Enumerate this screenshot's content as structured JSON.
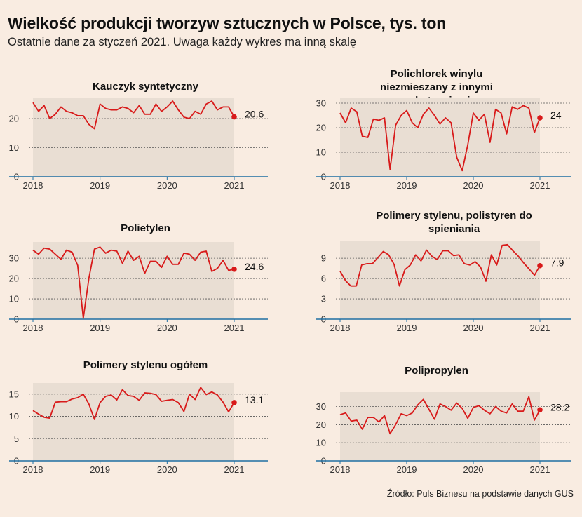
{
  "header": {
    "title": "Wielkość produkcji tworzyw sztucznych w Polsce, tys. ton",
    "subtitle": "Ostatnie dane za styczeń 2021. Uwaga każdy wykres ma inną skalę"
  },
  "footer": {
    "source": "Źródło: Puls Biznesu na podstawie danych GUS"
  },
  "colors": {
    "background": "#f9ece1",
    "area": "#e9ded3",
    "line": "#d81a1a",
    "axis": "#1f6fa3",
    "grid": "#555555"
  },
  "chart_data": [
    {
      "type": "line",
      "title": "Kauczyk syntetyczny",
      "x_ticks": [
        "2018",
        "2019",
        "2020",
        "2021"
      ],
      "ylim": [
        0,
        27
      ],
      "y_ticks": [
        0,
        10,
        20
      ],
      "grid": "dotted horizontal",
      "last_label": "20.6",
      "values": [
        25.5,
        22.5,
        24.5,
        20,
        21.5,
        24,
        22.5,
        22,
        21,
        21,
        18,
        16.5,
        25,
        23.5,
        23,
        23,
        24,
        23.5,
        22,
        24.5,
        21.5,
        21.5,
        25,
        22.5,
        24,
        26,
        23,
        20.5,
        20,
        22.5,
        21.5,
        25,
        26,
        23,
        24,
        24,
        20.6
      ]
    },
    {
      "type": "line",
      "title": "Polichlorek winylu niezmieszany z innymi substancjami",
      "x_ticks": [
        "2018",
        "2019",
        "2020",
        "2021"
      ],
      "ylim": [
        0,
        32
      ],
      "y_ticks": [
        0,
        10,
        20,
        30
      ],
      "grid": "dotted horizontal",
      "last_label": "24",
      "values": [
        26,
        22,
        28,
        26.5,
        16.5,
        16,
        23.5,
        23,
        24,
        3,
        21,
        25,
        27,
        22,
        20,
        25.5,
        28,
        25,
        21.5,
        24,
        22,
        8,
        2.5,
        13,
        26,
        23,
        25.5,
        14,
        27.5,
        26,
        17.5,
        28.5,
        27.5,
        29,
        28,
        18,
        24
      ]
    },
    {
      "type": "line",
      "title": "Polietylen",
      "x_ticks": [
        "2018",
        "2019",
        "2020",
        "2021"
      ],
      "ylim": [
        0,
        38
      ],
      "y_ticks": [
        0,
        10,
        20,
        30
      ],
      "grid": "dotted horizontal",
      "last_label": "24.6",
      "values": [
        34,
        32,
        35,
        34.5,
        32,
        29.5,
        34,
        33,
        26.5,
        0.5,
        20,
        34.5,
        35.5,
        32.5,
        34,
        33.5,
        27.5,
        33.5,
        29,
        31,
        22.5,
        28.5,
        28.5,
        25.5,
        31,
        27,
        27,
        32.5,
        32,
        29,
        33,
        33.5,
        23.5,
        25,
        29,
        24,
        24.6
      ]
    },
    {
      "type": "line",
      "title": "Polimery stylenu, polistyren do spieniania",
      "x_ticks": [
        "2018",
        "2019",
        "2020",
        "2021"
      ],
      "ylim": [
        0,
        11.5
      ],
      "y_ticks": [
        0,
        3,
        6,
        9
      ],
      "grid": "dotted horizontal",
      "last_label": "7.9",
      "values": [
        7.1,
        5.7,
        4.9,
        4.9,
        8,
        8.2,
        8.2,
        9.1,
        10,
        9.5,
        8.1,
        4.9,
        7.3,
        8,
        9.5,
        8.6,
        10.2,
        9.3,
        8.8,
        10.1,
        10.1,
        9.4,
        9.5,
        8.2,
        8,
        8.5,
        7.7,
        5.6,
        9.5,
        8,
        10.9,
        11,
        10.1,
        9.3,
        8.3,
        7.4,
        6.5,
        7.9
      ]
    },
    {
      "type": "line",
      "title": "Polimery stylenu ogółem",
      "x_ticks": [
        "2018",
        "2019",
        "2020",
        "2021"
      ],
      "ylim": [
        0,
        17.5
      ],
      "y_ticks": [
        0,
        5,
        10,
        15
      ],
      "grid": "dotted horizontal",
      "last_label": "13.1",
      "values": [
        11.3,
        10.5,
        9.8,
        9.6,
        13.2,
        13.3,
        13.3,
        13.9,
        14.2,
        15,
        12.8,
        9.3,
        13.1,
        14.5,
        14.8,
        13.7,
        16,
        14.7,
        14.5,
        13.6,
        15.3,
        15.2,
        14.9,
        13.4,
        13.6,
        13.8,
        13.1,
        11.1,
        15,
        13.8,
        16.5,
        14.9,
        15.5,
        14.8,
        13.2,
        11,
        13.1
      ]
    },
    {
      "type": "line",
      "title": "Polipropylen",
      "x_ticks": [
        "2018",
        "2019",
        "2020",
        "2021"
      ],
      "ylim": [
        0,
        38
      ],
      "y_ticks": [
        0,
        10,
        20,
        30
      ],
      "grid": "dotted horizontal",
      "last_label": "28.2",
      "values": [
        25.5,
        26.5,
        22,
        22.5,
        17.5,
        24,
        24,
        21.5,
        25,
        15,
        20,
        26,
        25,
        26.5,
        31,
        34,
        28.5,
        23,
        31.5,
        30,
        28,
        32,
        29,
        23.5,
        29.5,
        30.5,
        28,
        26,
        30,
        27.5,
        26.5,
        31.5,
        27.5,
        27.5,
        35.5,
        22.5,
        28.2
      ]
    }
  ]
}
